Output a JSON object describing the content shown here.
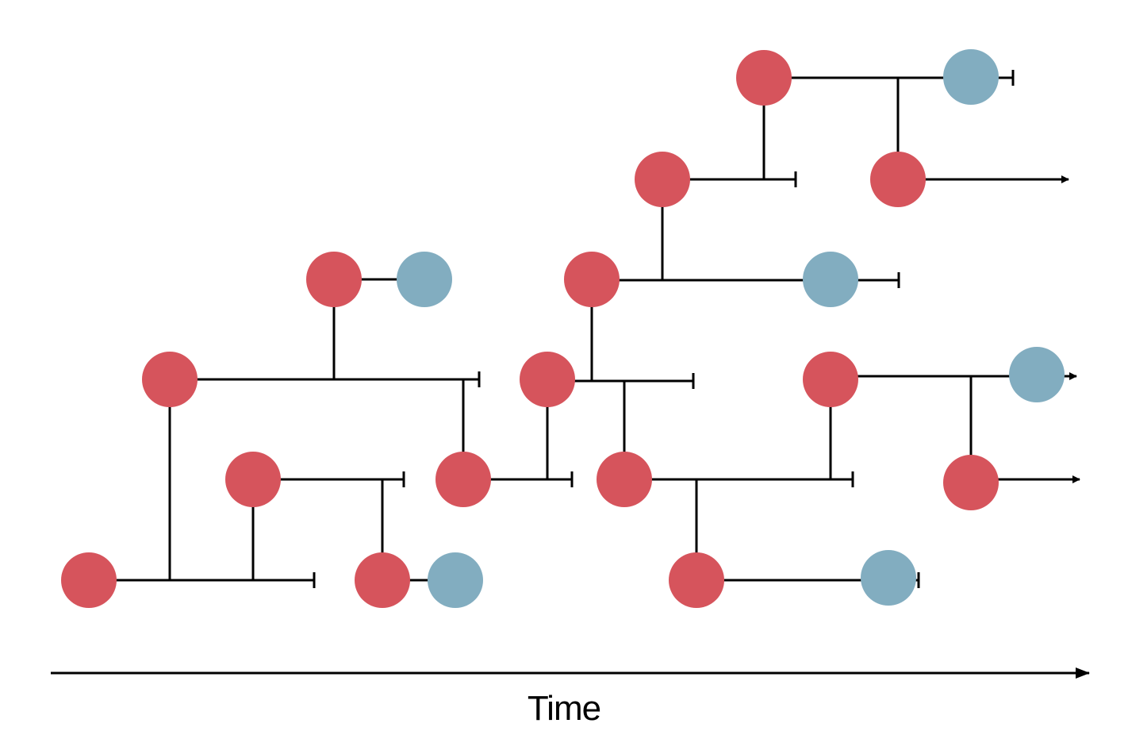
{
  "axis": {
    "label": "Time"
  },
  "colors": {
    "red_node": "#D6545C",
    "blue_node": "#82ADC0",
    "line": "#000000"
  },
  "legend": []
}
